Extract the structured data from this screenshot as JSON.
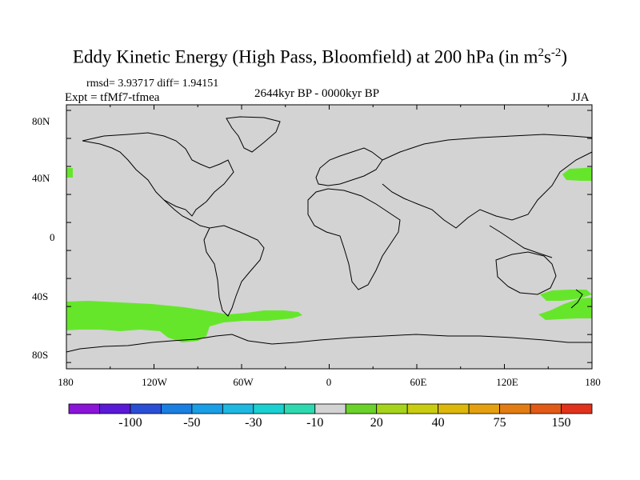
{
  "title": {
    "text": "Eddy Kinetic Energy (High Pass, Bloomfield) at 200 hPa (in m",
    "unit_sup1": "2",
    "unit_mid": "s",
    "unit_sup2": "-2",
    "unit_close": ")"
  },
  "stats": "rmsd= 3.93717 diff= 1.94151",
  "expt": "Expt = tfMf7-tfmea",
  "period": "2644kyr BP - 0000kyr BP",
  "season": "JJA",
  "lat_labels": [
    "80N",
    "40N",
    "0",
    "40S",
    "80S"
  ],
  "lon_labels": [
    "180",
    "120W",
    "60W",
    "0",
    "60E",
    "120E",
    "180"
  ],
  "colors": {
    "ocean_land_fill": "#d3d3d3",
    "positive_anomaly": "#66e62b",
    "coastline": "#000000"
  },
  "colorbar": {
    "colors": [
      "#8a14d8",
      "#5a19d6",
      "#2a4fd4",
      "#1a7fe0",
      "#1a9ee6",
      "#1fb8e0",
      "#1bd0d0",
      "#2ed9b0",
      "#d3d3d3",
      "#6ad22a",
      "#a6d41c",
      "#c8cd12",
      "#dcb80c",
      "#e4a010",
      "#e27d14",
      "#e25a18",
      "#e0321c"
    ],
    "labels": [
      "-100",
      "-50",
      "-30",
      "-10",
      "20",
      "40",
      "75",
      "150"
    ]
  }
}
